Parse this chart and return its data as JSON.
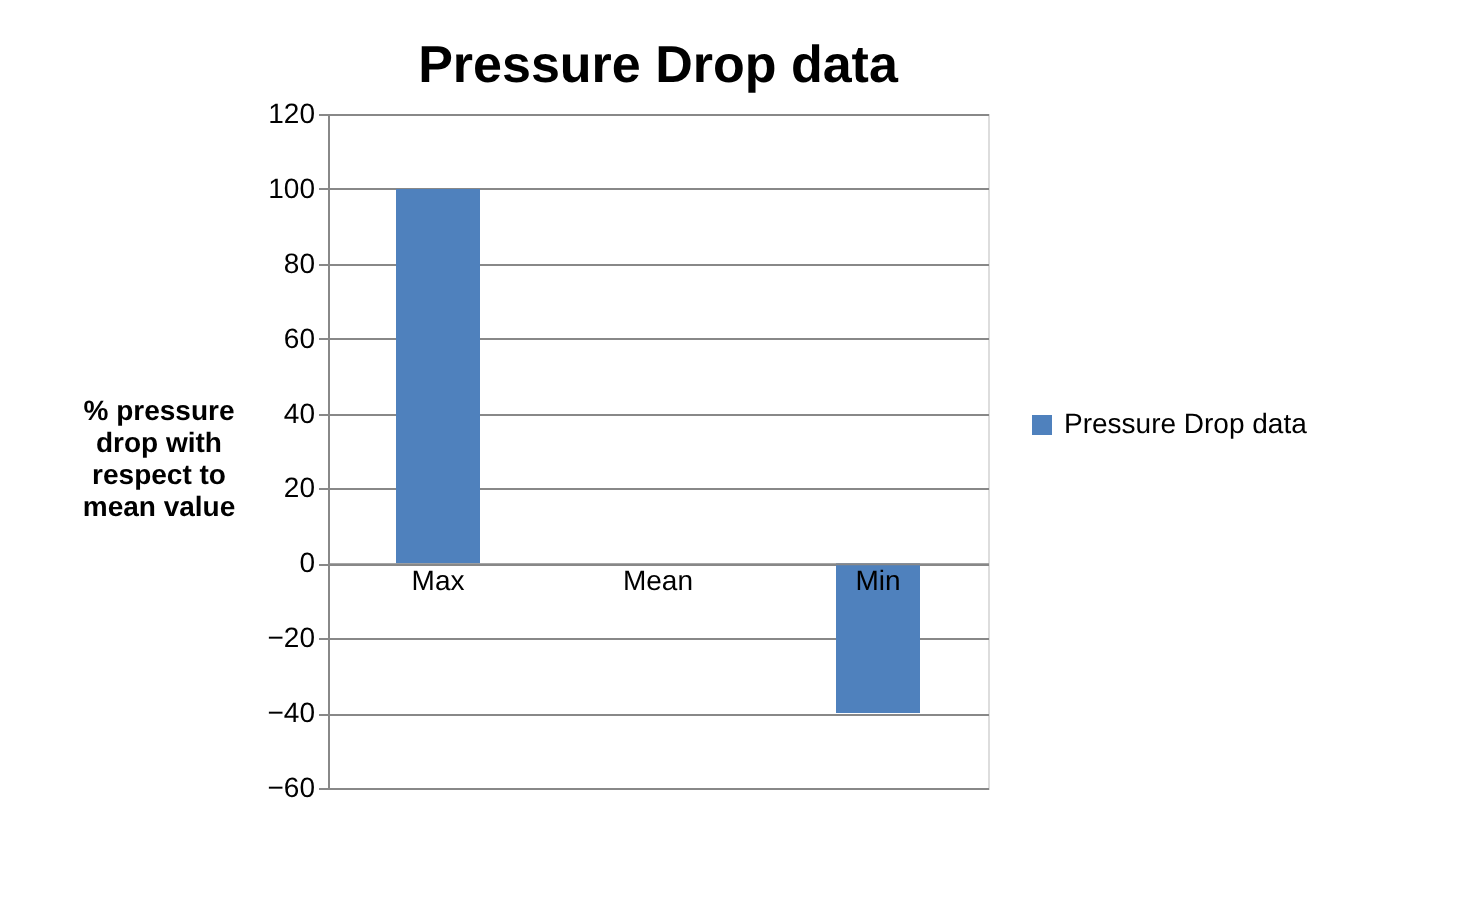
{
  "chart_data": {
    "type": "bar",
    "title": "Pressure Drop data",
    "ylabel": "% pressure drop with respect to mean value",
    "categories": [
      "Max",
      "Mean",
      "Min"
    ],
    "series": [
      {
        "name": "Pressure Drop data",
        "color": "#4f81bd",
        "values": [
          100,
          0,
          -40
        ]
      }
    ],
    "ylim": [
      -60,
      120
    ],
    "yticks": [
      -60,
      -40,
      -20,
      0,
      20,
      40,
      60,
      80,
      100,
      120
    ],
    "grid": "y",
    "legend": "right"
  }
}
